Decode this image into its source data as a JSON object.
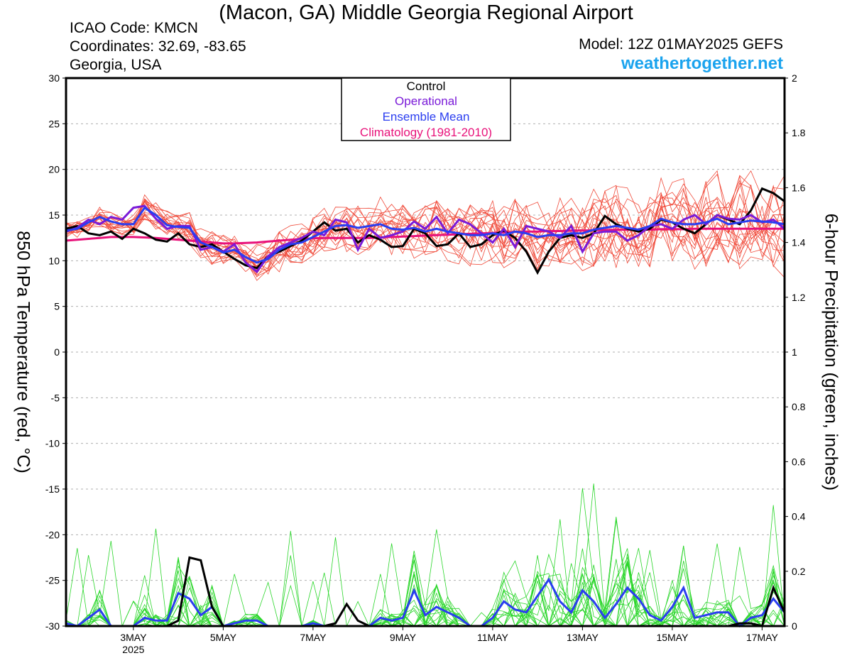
{
  "header": {
    "title": "(Macon, GA) Middle Georgia Regional Airport",
    "icao": "ICAO Code: KMCN",
    "coordinates": "Coordinates: 32.69, -83.65",
    "region": "Georgia, USA",
    "model": "Model: 12Z 01MAY2025 GEFS",
    "brand": "weathertogether.net"
  },
  "colors": {
    "control": "#000000",
    "operational": "#7a1ad8",
    "ensemble_mean": "#2a3df0",
    "climatology": "#e8127a",
    "member_temp": "#f04a3a",
    "member_precip": "#2ad62a",
    "grid": "#b0b0b0"
  },
  "chart_data": {
    "type": "line",
    "title": "(Macon, GA) Middle Georgia Regional Airport",
    "ylabel": "850 hPa Temperature (red, °C)",
    "ylabel2": "6-hour Precipitation (green, inches)",
    "ylim": [
      -30,
      30
    ],
    "ylim2": [
      0,
      2
    ],
    "yticks": [
      "30",
      "25",
      "20",
      "15",
      "10",
      "5",
      "0",
      "-5",
      "-10",
      "-15",
      "-20",
      "-25",
      "-30"
    ],
    "yticks2": [
      "2",
      "1.8",
      "1.6",
      "1.4",
      "1.2",
      "1",
      "0.8",
      "0.6",
      "0.4",
      "0.2",
      "0"
    ],
    "xlim": [
      1.5,
      17.5
    ],
    "xticks": [
      {
        "day": 3,
        "label": "3MAY",
        "sub": "2025"
      },
      {
        "day": 5,
        "label": "5MAY",
        "sub": ""
      },
      {
        "day": 7,
        "label": "7MAY",
        "sub": ""
      },
      {
        "day": 9,
        "label": "9MAY",
        "sub": ""
      },
      {
        "day": 11,
        "label": "11MAY",
        "sub": ""
      },
      {
        "day": 13,
        "label": "13MAY",
        "sub": ""
      },
      {
        "day": 15,
        "label": "15MAY",
        "sub": ""
      },
      {
        "day": 17,
        "label": "17MAY",
        "sub": ""
      }
    ],
    "legend": {
      "placement": "top-center",
      "entries": [
        "Control",
        "Operational",
        "Ensemble Mean",
        "Climatology (1981-2010)"
      ]
    },
    "x_days": [
      1.5,
      1.75,
      2.0,
      2.25,
      2.5,
      2.75,
      3.0,
      3.25,
      3.5,
      3.75,
      4.0,
      4.25,
      4.5,
      4.75,
      5.0,
      5.25,
      5.5,
      5.75,
      6.0,
      6.25,
      6.5,
      6.75,
      7.0,
      7.25,
      7.5,
      7.75,
      8.0,
      8.25,
      8.5,
      8.75,
      9.0,
      9.25,
      9.5,
      9.75,
      10.0,
      10.25,
      10.5,
      10.75,
      11.0,
      11.25,
      11.5,
      11.75,
      12.0,
      12.25,
      12.5,
      12.75,
      13.0,
      13.25,
      13.5,
      13.75,
      14.0,
      14.25,
      14.5,
      14.75,
      15.0,
      15.25,
      15.5,
      15.75,
      16.0,
      16.25,
      16.5,
      16.75,
      17.0,
      17.25,
      17.5
    ],
    "temperature": {
      "control": [
        13.5,
        13.8,
        13.0,
        12.8,
        13.2,
        12.4,
        13.5,
        13.0,
        12.3,
        12.1,
        13.0,
        11.8,
        11.5,
        11.8,
        11.0,
        10.2,
        9.5,
        9.2,
        10.5,
        11.0,
        11.6,
        12.2,
        13.2,
        14.2,
        13.3,
        13.5,
        12.0,
        12.8,
        12.3,
        11.5,
        11.6,
        13.5,
        13.0,
        11.6,
        11.8,
        13.0,
        11.5,
        11.8,
        12.8,
        13.3,
        12.5,
        11.0,
        8.7,
        11.0,
        12.5,
        12.8,
        12.5,
        13.0,
        14.9,
        14.0,
        13.5,
        13.2,
        13.5,
        14.5,
        14.2,
        13.5,
        13.0,
        14.0,
        15.0,
        14.5,
        14.0,
        15.5,
        17.9,
        17.4,
        16.5
      ],
      "operational": [
        13.2,
        13.6,
        14.5,
        14.0,
        14.8,
        14.5,
        15.8,
        16.0,
        14.6,
        13.5,
        13.8,
        13.8,
        11.2,
        11.5,
        11.0,
        11.8,
        9.8,
        8.8,
        10.5,
        11.5,
        12.0,
        12.5,
        13.2,
        12.8,
        14.5,
        14.2,
        11.2,
        13.5,
        12.5,
        12.8,
        13.2,
        14.3,
        13.5,
        14.8,
        13.0,
        14.5,
        14.0,
        13.0,
        12.0,
        13.5,
        11.5,
        13.8,
        13.5,
        13.2,
        12.5,
        13.8,
        11.0,
        13.0,
        13.2,
        13.2,
        12.2,
        12.8,
        13.8,
        14.0,
        13.5,
        14.5,
        15.0,
        14.0,
        15.0,
        14.6,
        14.5,
        15.0,
        14.2,
        14.5,
        13.5
      ],
      "ensemble_mean": [
        13.3,
        13.5,
        14.2,
        14.8,
        14.3,
        14.0,
        14.0,
        15.8,
        15.0,
        13.9,
        13.7,
        13.6,
        12.0,
        11.5,
        10.9,
        11.2,
        10.4,
        9.8,
        10.2,
        11.2,
        11.8,
        12.0,
        12.6,
        13.2,
        13.8,
        13.9,
        13.6,
        13.8,
        14.0,
        13.5,
        13.4,
        13.6,
        13.2,
        13.5,
        13.2,
        13.0,
        12.8,
        12.8,
        13.0,
        12.8,
        13.2,
        13.0,
        12.6,
        12.8,
        12.8,
        13.0,
        13.0,
        13.4,
        13.6,
        13.8,
        13.6,
        13.4,
        13.8,
        14.6,
        14.2,
        14.0,
        14.0,
        14.2,
        14.6,
        14.0,
        14.2,
        14.4,
        14.3,
        14.2,
        14.0
      ],
      "climatology": [
        12.2,
        12.3,
        12.4,
        12.5,
        12.6,
        12.6,
        12.6,
        12.55,
        12.5,
        12.4,
        12.3,
        12.2,
        12.1,
        12.0,
        11.9,
        11.9,
        11.95,
        12.0,
        12.1,
        12.2,
        12.3,
        12.4,
        12.45,
        12.5,
        12.5,
        12.5,
        12.5,
        12.5,
        12.55,
        12.6,
        12.65,
        12.7,
        12.75,
        12.8,
        12.85,
        12.9,
        12.95,
        13.0,
        13.05,
        13.1,
        13.15,
        13.2,
        13.2,
        13.25,
        13.25,
        13.3,
        13.3,
        13.35,
        13.35,
        13.4,
        13.4,
        13.4,
        13.4,
        13.45,
        13.45,
        13.45,
        13.5,
        13.5,
        13.5,
        13.5,
        13.5,
        13.5,
        13.5,
        13.5,
        13.5
      ]
    },
    "precipitation": {
      "control": [
        0.0,
        0.0,
        0.0,
        0.0,
        0.0,
        0.0,
        0.0,
        0.0,
        0.0,
        0.0,
        0.02,
        0.25,
        0.24,
        0.07,
        0.0,
        0.0,
        0.0,
        0.0,
        0.0,
        0.0,
        0.0,
        0.0,
        0.0,
        0.0,
        0.01,
        0.08,
        0.02,
        0.0,
        0.0,
        0.0,
        0.0,
        0.0,
        0.0,
        0.0,
        0.0,
        0.0,
        0.0,
        0.0,
        0.0,
        0.0,
        0.0,
        0.0,
        0.0,
        0.0,
        0.0,
        0.0,
        0.0,
        0.0,
        0.0,
        0.0,
        0.0,
        0.0,
        0.0,
        0.0,
        0.0,
        0.0,
        0.0,
        0.0,
        0.0,
        0.0,
        0.01,
        0.01,
        0.0,
        0.14,
        0.05
      ],
      "ensemble_mean": [
        0.01,
        0.0,
        0.03,
        0.06,
        0.0,
        0.0,
        0.0,
        0.03,
        0.02,
        0.02,
        0.12,
        0.1,
        0.04,
        0.07,
        0.0,
        0.01,
        0.02,
        0.02,
        0.0,
        0.0,
        0.0,
        0.0,
        0.01,
        0.0,
        0.0,
        0.0,
        0.0,
        0.0,
        0.03,
        0.02,
        0.03,
        0.13,
        0.04,
        0.07,
        0.05,
        0.03,
        0.0,
        0.0,
        0.03,
        0.09,
        0.06,
        0.05,
        0.11,
        0.17,
        0.09,
        0.05,
        0.13,
        0.09,
        0.03,
        0.08,
        0.14,
        0.1,
        0.04,
        0.02,
        0.07,
        0.14,
        0.03,
        0.04,
        0.05,
        0.05,
        0.0,
        0.03,
        0.04,
        0.1,
        0.05
      ]
    }
  }
}
